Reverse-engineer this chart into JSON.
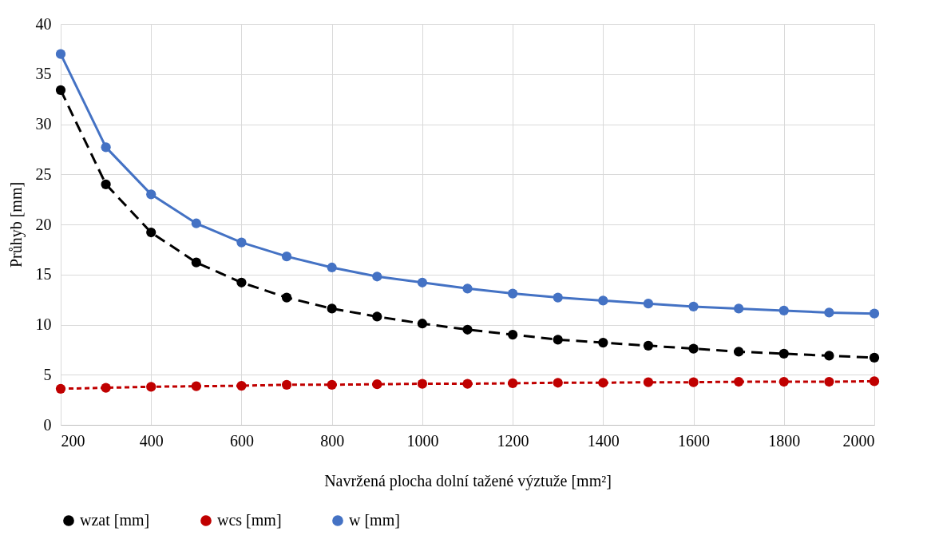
{
  "chart_data": {
    "type": "line",
    "xlabel": "Navržená plocha dolní tažené výztuže [mm²]",
    "ylabel": "Průhyb [mm]",
    "x": [
      200,
      300,
      400,
      500,
      600,
      700,
      800,
      900,
      1000,
      1100,
      1200,
      1300,
      1400,
      1500,
      1600,
      1700,
      1800,
      1900,
      2000
    ],
    "series": [
      {
        "name": "wzat [mm]",
        "color": "#000000",
        "line_style": "dashed",
        "values": [
          33.4,
          24.0,
          19.2,
          16.2,
          14.2,
          12.7,
          11.6,
          10.8,
          10.1,
          9.5,
          9.0,
          8.5,
          8.2,
          7.9,
          7.6,
          7.3,
          7.1,
          6.9,
          6.7
        ]
      },
      {
        "name": "wcs [mm]",
        "color": "#c00000",
        "line_style": "dotted",
        "values": [
          3.6,
          3.7,
          3.8,
          3.85,
          3.9,
          4.0,
          4.0,
          4.05,
          4.1,
          4.1,
          4.15,
          4.2,
          4.2,
          4.25,
          4.25,
          4.3,
          4.3,
          4.3,
          4.35
        ]
      },
      {
        "name": "w [mm]",
        "color": "#4472c4",
        "line_style": "solid",
        "values": [
          37.0,
          27.7,
          23.0,
          20.1,
          18.2,
          16.8,
          15.7,
          14.8,
          14.2,
          13.6,
          13.1,
          12.7,
          12.4,
          12.1,
          11.8,
          11.6,
          11.4,
          11.2,
          11.1
        ]
      }
    ],
    "xlim": [
      200,
      2000
    ],
    "xticks": [
      200,
      400,
      600,
      800,
      1000,
      1200,
      1400,
      1600,
      1800,
      2000
    ],
    "ylim": [
      0,
      40
    ],
    "yticks": [
      0,
      5,
      10,
      15,
      20,
      25,
      30,
      35,
      40
    ],
    "grid": true,
    "legend": "bottom",
    "marker": "circle"
  }
}
